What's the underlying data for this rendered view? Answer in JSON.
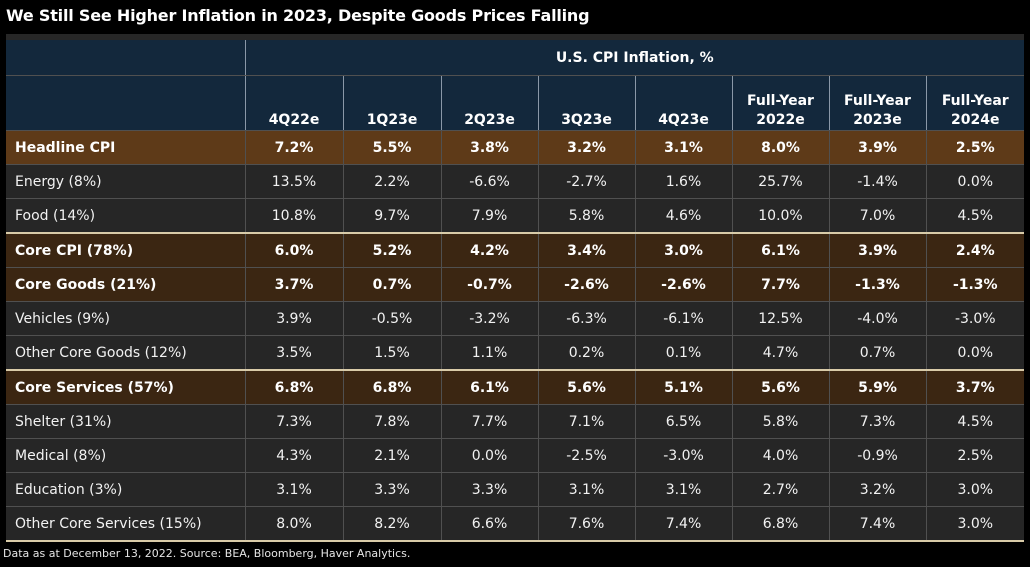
{
  "title": "We Still See Higher Inflation in 2023, Despite Goods Prices Falling",
  "footer": "Data as at December 13, 2022. Source: BEA, Bloomberg, Haver Analytics.",
  "colors": {
    "header_bg": "#13283c",
    "highlight_row_dark": "#3b2612",
    "highlight_row_first": "#5e3a18",
    "body_bg": "#272727",
    "separator": "#d9cba8"
  },
  "chart_data": {
    "type": "table",
    "title": "We Still See Higher Inflation in 2023, Despite Goods Prices Falling",
    "group_header": "U.S. CPI Inflation, %",
    "columns": [
      [
        "4Q22e"
      ],
      [
        "1Q23e"
      ],
      [
        "2Q23e"
      ],
      [
        "3Q23e"
      ],
      [
        "4Q23e"
      ],
      [
        "Full-Year",
        "2022e"
      ],
      [
        "Full-Year",
        "2023e"
      ],
      [
        "Full-Year",
        "2024e"
      ]
    ],
    "rows": [
      {
        "label": "Headline CPI",
        "style": "highlight",
        "values": [
          "7.2%",
          "5.5%",
          "3.8%",
          "3.2%",
          "3.1%",
          "8.0%",
          "3.9%",
          "2.5%"
        ]
      },
      {
        "label": "Energy (8%)",
        "style": "normal",
        "values": [
          "13.5%",
          "2.2%",
          "-6.6%",
          "-2.7%",
          "1.6%",
          "25.7%",
          "-1.4%",
          "0.0%"
        ]
      },
      {
        "label": "Food (14%)",
        "style": "normal",
        "values": [
          "10.8%",
          "9.7%",
          "7.9%",
          "5.8%",
          "4.6%",
          "10.0%",
          "7.0%",
          "4.5%"
        ]
      },
      {
        "label": "Core CPI (78%)",
        "style": "highlight",
        "values": [
          "6.0%",
          "5.2%",
          "4.2%",
          "3.4%",
          "3.0%",
          "6.1%",
          "3.9%",
          "2.4%"
        ]
      },
      {
        "label": "Core Goods (21%)",
        "style": "highlight",
        "values": [
          "3.7%",
          "0.7%",
          "-0.7%",
          "-2.6%",
          "-2.6%",
          "7.7%",
          "-1.3%",
          "-1.3%"
        ]
      },
      {
        "label": "Vehicles (9%)",
        "style": "normal",
        "values": [
          "3.9%",
          "-0.5%",
          "-3.2%",
          "-6.3%",
          "-6.1%",
          "12.5%",
          "-4.0%",
          "-3.0%"
        ]
      },
      {
        "label": "Other Core Goods (12%)",
        "style": "normal",
        "values": [
          "3.5%",
          "1.5%",
          "1.1%",
          "0.2%",
          "0.1%",
          "4.7%",
          "0.7%",
          "0.0%"
        ]
      },
      {
        "label": "Core Services (57%)",
        "style": "highlight",
        "values": [
          "6.8%",
          "6.8%",
          "6.1%",
          "5.6%",
          "5.1%",
          "5.6%",
          "5.9%",
          "3.7%"
        ]
      },
      {
        "label": "Shelter (31%)",
        "style": "normal",
        "values": [
          "7.3%",
          "7.8%",
          "7.7%",
          "7.1%",
          "6.5%",
          "5.8%",
          "7.3%",
          "4.5%"
        ]
      },
      {
        "label": "Medical (8%)",
        "style": "normal",
        "values": [
          "4.3%",
          "2.1%",
          "0.0%",
          "-2.5%",
          "-3.0%",
          "4.0%",
          "-0.9%",
          "2.5%"
        ]
      },
      {
        "label": "Education (3%)",
        "style": "normal",
        "values": [
          "3.1%",
          "3.3%",
          "3.3%",
          "3.1%",
          "3.1%",
          "2.7%",
          "3.2%",
          "3.0%"
        ]
      },
      {
        "label": "Other Core Services (15%)",
        "style": "normal",
        "values": [
          "8.0%",
          "8.2%",
          "6.6%",
          "7.6%",
          "7.4%",
          "6.8%",
          "7.4%",
          "3.0%"
        ]
      }
    ]
  }
}
